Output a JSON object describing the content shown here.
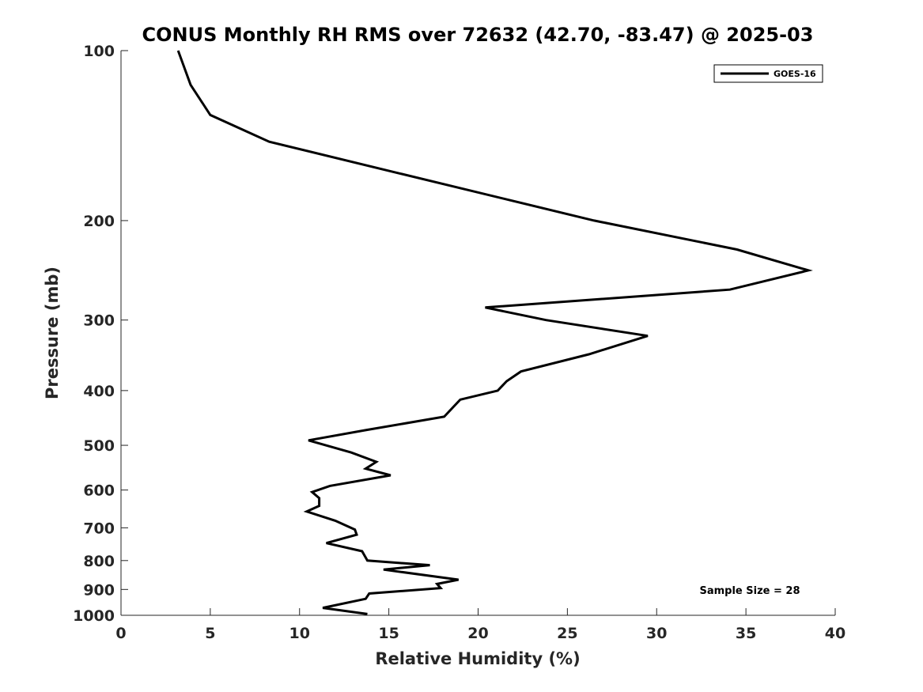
{
  "chart_data": {
    "type": "line",
    "title": "CONUS Monthly RH RMS over 72632 (42.70, -83.47) @ 2025-03",
    "xlabel": "Relative Humidity (%)",
    "ylabel": "Pressure (mb)",
    "xlim": [
      0,
      40
    ],
    "ylim": [
      100,
      1000
    ],
    "y_scale": "log",
    "y_inverted": true,
    "xticks": [
      0,
      5,
      10,
      15,
      20,
      25,
      30,
      35,
      40
    ],
    "yticks": [
      100,
      200,
      300,
      400,
      500,
      600,
      700,
      800,
      900,
      1000
    ],
    "grid": false,
    "legend_position": "top-right",
    "series": [
      {
        "name": "GOES-16",
        "color": "#000000",
        "x": [
          3.2,
          3.9,
          5.0,
          8.3,
          15.6,
          26.5,
          34.5,
          38.5,
          34.1,
          20.4,
          23.8,
          29.5,
          26.2,
          22.4,
          21.6,
          21.1,
          19.0,
          18.1,
          13.7,
          10.5,
          12.9,
          14.3,
          13.7,
          15.1,
          11.7,
          10.7,
          11.1,
          11.1,
          10.4,
          12.0,
          13.1,
          13.2,
          11.5,
          13.5,
          13.8,
          17.3,
          14.7,
          18.9,
          17.7,
          17.9,
          13.9,
          13.7,
          11.3,
          13.8
        ],
        "y": [
          100,
          115,
          130,
          145,
          165,
          200,
          225,
          245,
          265,
          285,
          300,
          320,
          345,
          370,
          385,
          400,
          415,
          445,
          470,
          490,
          515,
          535,
          550,
          565,
          590,
          605,
          620,
          640,
          655,
          680,
          705,
          720,
          745,
          770,
          800,
          815,
          830,
          865,
          880,
          895,
          915,
          935,
          970,
          995
        ]
      }
    ],
    "annotations": [
      "Sample Size = 28"
    ]
  }
}
